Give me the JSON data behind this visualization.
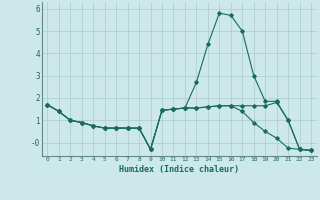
{
  "xlabel": "Humidex (Indice chaleur)",
  "background_color": "#cce8e8",
  "grid_color": "#aacccc",
  "line_color": "#1a6b5a",
  "x_values": [
    0,
    1,
    2,
    3,
    4,
    5,
    6,
    7,
    8,
    9,
    10,
    11,
    12,
    13,
    14,
    15,
    16,
    17,
    18,
    19,
    20,
    21,
    22,
    23
  ],
  "series1": [
    1.7,
    1.4,
    1.0,
    0.9,
    0.75,
    0.65,
    0.65,
    0.65,
    0.65,
    -0.3,
    1.45,
    1.5,
    1.55,
    2.7,
    4.4,
    5.8,
    5.7,
    5.0,
    3.0,
    1.85,
    1.85,
    1.0,
    -0.3,
    -0.35
  ],
  "series2": [
    1.7,
    1.4,
    1.0,
    0.9,
    0.75,
    0.65,
    0.65,
    0.65,
    0.65,
    -0.3,
    1.45,
    1.5,
    1.55,
    1.55,
    1.6,
    1.65,
    1.65,
    1.65,
    1.65,
    1.65,
    1.8,
    1.0,
    -0.3,
    -0.35
  ],
  "series3": [
    1.7,
    1.4,
    1.0,
    0.9,
    0.75,
    0.65,
    0.65,
    0.65,
    0.65,
    -0.3,
    1.45,
    1.5,
    1.55,
    1.55,
    1.6,
    1.65,
    1.65,
    1.4,
    0.9,
    0.5,
    0.2,
    -0.25,
    -0.3,
    -0.35
  ],
  "ylim": [
    -0.6,
    6.3
  ],
  "yticks": [
    0,
    1,
    2,
    3,
    4,
    5,
    6
  ],
  "ytick_labels": [
    "-0",
    "1",
    "2",
    "3",
    "4",
    "5",
    "6"
  ],
  "xlim": [
    -0.5,
    23.5
  ]
}
